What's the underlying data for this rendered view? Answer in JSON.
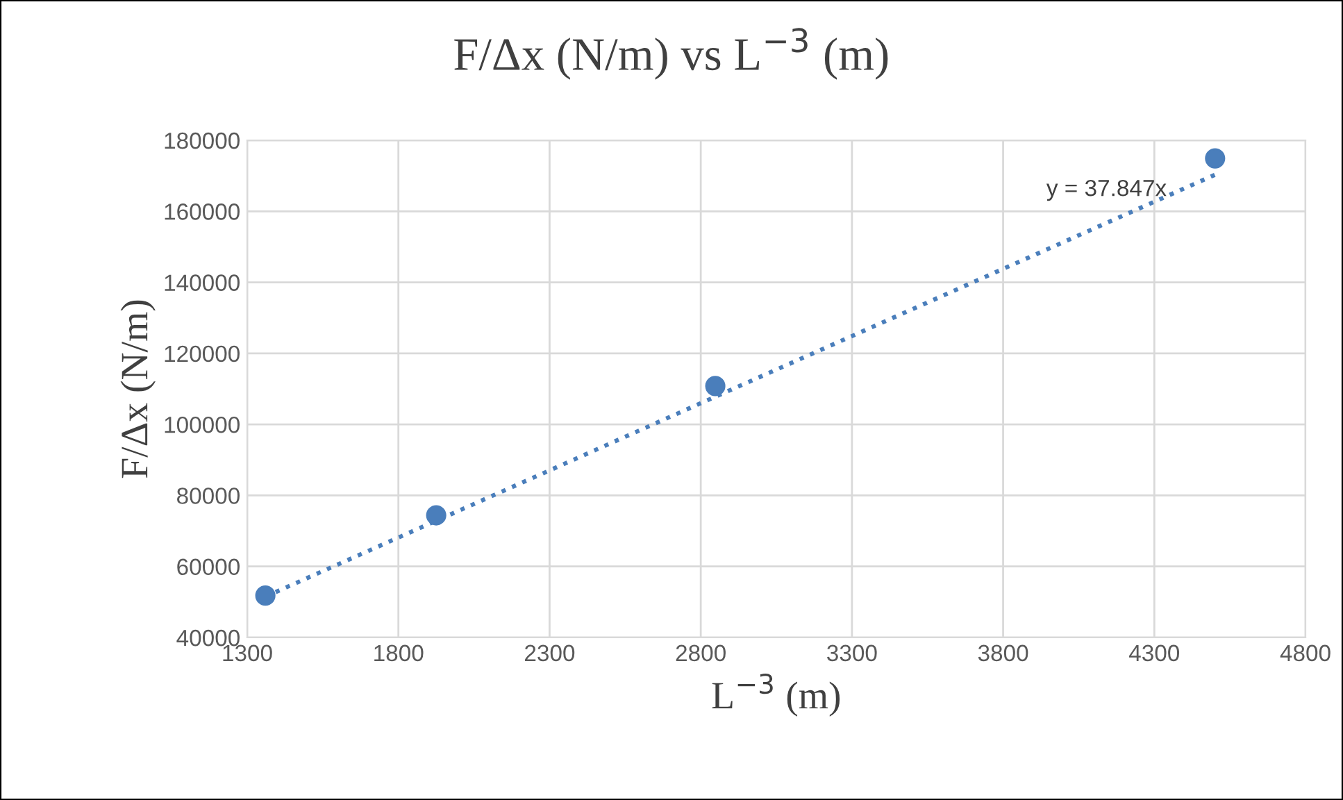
{
  "chart_data": {
    "type": "scatter",
    "title": "F/Δx (N/m) vs L$^{−3}$ (m)",
    "xlabel": "L$^{−3}$ (m)",
    "ylabel": "F/Δx (N/m)",
    "series": [
      {
        "color": "#4a7ebb",
        "marker": "circle",
        "x": [
          1360,
          1925,
          2848,
          4501
        ],
        "values": [
          51800,
          74400,
          110800,
          174900
        ]
      },
      {
        "type": "line",
        "color": "#4a7ebb",
        "line_style": "dotted",
        "marker": "none",
        "x": [
          1360,
          4501
        ],
        "values": [
          51500,
          170300
        ]
      }
    ],
    "annotations": [
      "y = 37.847x"
    ],
    "xlim": [
      1300,
      4800
    ],
    "xticks": [
      1300,
      1800,
      2300,
      2800,
      3300,
      3800,
      4300,
      4800
    ],
    "ylim": [
      40000,
      180000
    ],
    "yticks": [
      40000,
      60000,
      80000,
      100000,
      120000,
      140000,
      160000,
      180000
    ],
    "grid": true,
    "legend": false
  }
}
